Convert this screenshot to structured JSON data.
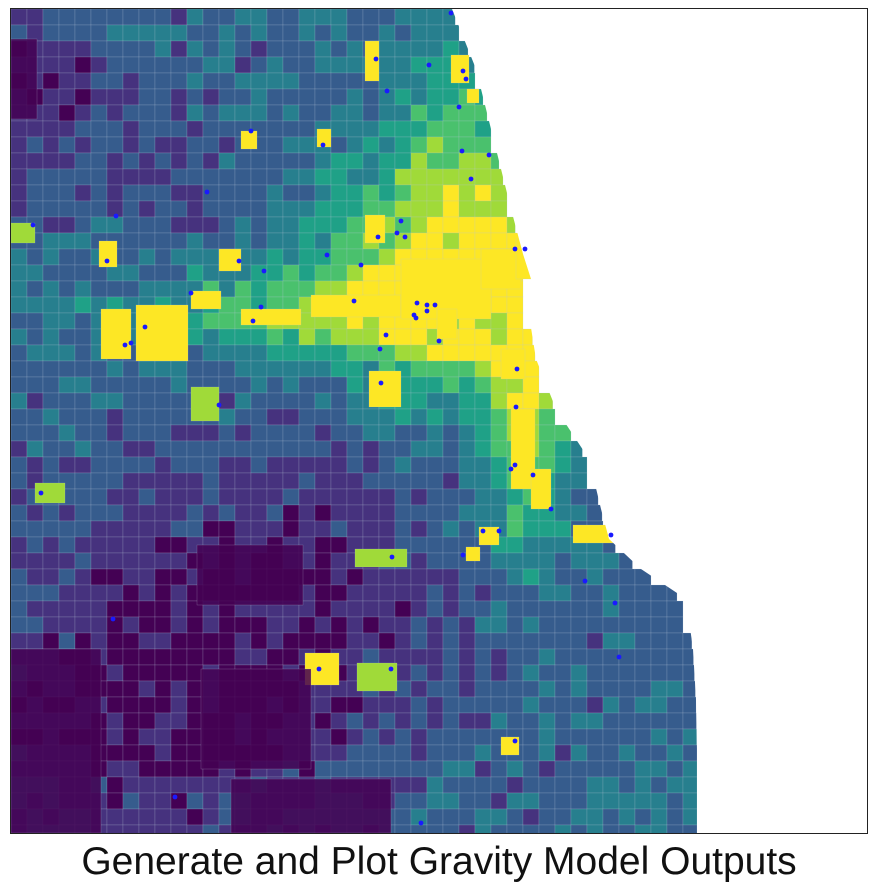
{
  "caption": "Generate and Plot Gravity Model Outputs",
  "colors": {
    "background": "#ffffff",
    "border": "#222222",
    "colormap": [
      "#440154",
      "#46327e",
      "#365c8d",
      "#277f8e",
      "#1fa187",
      "#4ac16d",
      "#a0da39",
      "#fde725"
    ],
    "marker": "#1a1aff",
    "tract_edge": "#b9c7d9"
  },
  "map": {
    "colormap_name": "viridis",
    "marker_icon": "dot-marker",
    "marker_count": 63
  }
}
